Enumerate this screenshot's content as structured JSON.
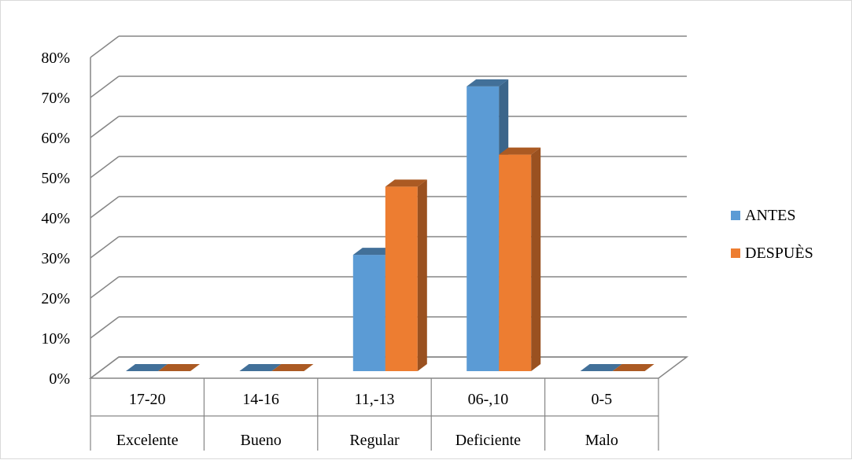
{
  "chart_data": {
    "type": "bar",
    "style": "3d-clustered-column",
    "categories": [
      "17-20",
      "14-16",
      "11,-13",
      "06-,10",
      "0-5"
    ],
    "category_groups": [
      "Excelente",
      "Bueno",
      "Regular",
      "Deficiente",
      "Malo"
    ],
    "series": [
      {
        "name": "ANTES",
        "color": "#5b9bd5",
        "values": [
          0,
          0,
          29,
          71,
          0
        ]
      },
      {
        "name": "DESPUÈS",
        "color": "#ed7d31",
        "values": [
          0,
          0,
          46,
          54,
          0
        ]
      }
    ],
    "y_ticks": [
      "0%",
      "10%",
      "20%",
      "30%",
      "40%",
      "50%",
      "60%",
      "70%",
      "80%"
    ],
    "ylim": [
      0,
      80
    ],
    "grid": true,
    "legend_position": "right",
    "title": "",
    "xlabel": "",
    "ylabel": ""
  }
}
